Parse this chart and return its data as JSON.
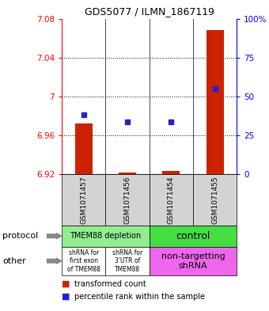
{
  "title": "GDS5077 / ILMN_1867119",
  "samples": [
    "GSM1071457",
    "GSM1071456",
    "GSM1071454",
    "GSM1071455"
  ],
  "red_values": [
    6.972,
    6.922,
    6.923,
    7.068
  ],
  "red_bottoms": [
    6.92,
    6.92,
    6.92,
    6.92
  ],
  "blue_values": [
    6.981,
    6.974,
    6.974,
    7.008
  ],
  "ylim_left": [
    6.92,
    7.08
  ],
  "ylim_right": [
    0,
    100
  ],
  "yticks_left": [
    6.92,
    6.96,
    7.0,
    7.04,
    7.08
  ],
  "yticks_right": [
    0,
    25,
    50,
    75,
    100
  ],
  "ytick_labels_left": [
    "6.92",
    "6.96",
    "7",
    "7.04",
    "7.08"
  ],
  "ytick_labels_right": [
    "0",
    "25",
    "50",
    "75",
    "100%"
  ],
  "hlines": [
    6.96,
    7.0,
    7.04
  ],
  "protocol_configs": [
    {
      "start": 0,
      "end": 2,
      "color": "#90ee90",
      "label": "TMEM88 depletion",
      "fontsize": 7
    },
    {
      "start": 2,
      "end": 4,
      "color": "#44dd44",
      "label": "control",
      "fontsize": 9
    }
  ],
  "other_configs": [
    {
      "start": 0,
      "end": 1,
      "color": "#ffffff",
      "label": "shRNA for\nfirst exon\nof TMEM88",
      "fontsize": 5.5
    },
    {
      "start": 1,
      "end": 2,
      "color": "#ffffff",
      "label": "shRNA for\n3'UTR of\nTMEM88",
      "fontsize": 5.5
    },
    {
      "start": 2,
      "end": 4,
      "color": "#ee66ee",
      "label": "non-targetting\nshRNA",
      "fontsize": 8
    }
  ],
  "legend_red": "transformed count",
  "legend_blue": "percentile rank within the sample",
  "bar_color": "#cc2200",
  "dot_color": "#2222cc",
  "bar_width": 0.4
}
